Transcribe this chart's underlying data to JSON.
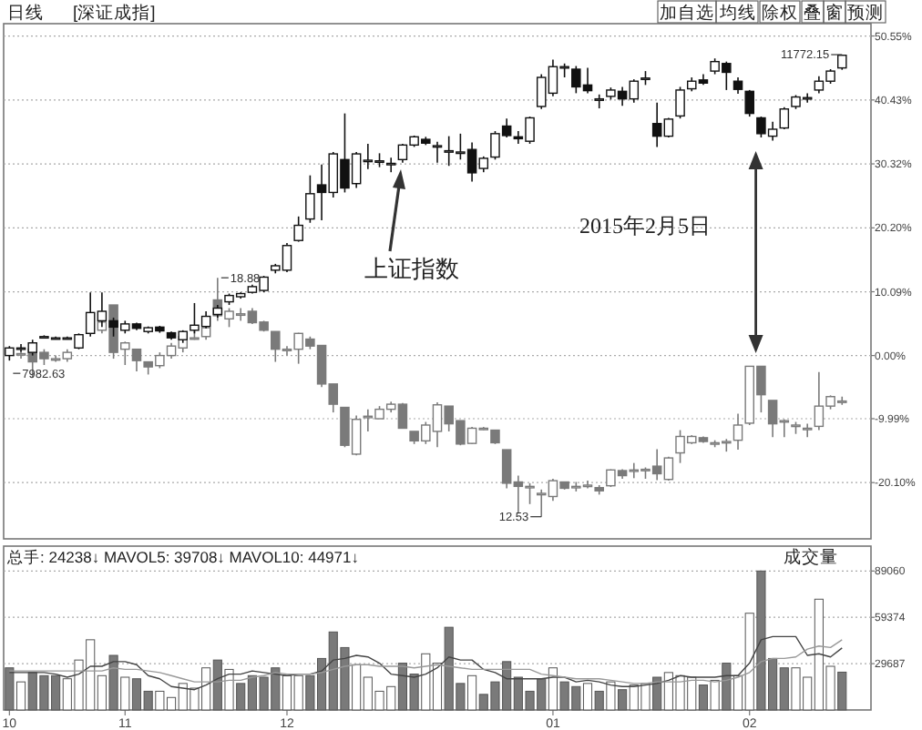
{
  "chart_data": [
    {
      "type": "candlestick",
      "categories": [
        "10",
        null,
        null,
        null,
        null,
        null,
        null,
        null,
        null,
        null,
        "11",
        null,
        null,
        null,
        null,
        null,
        null,
        null,
        null,
        null,
        null,
        null,
        null,
        null,
        "12",
        null,
        null,
        null,
        null,
        null,
        null,
        null,
        null,
        null,
        null,
        null,
        null,
        null,
        null,
        null,
        null,
        null,
        null,
        null,
        null,
        null,
        null,
        "01",
        null,
        null,
        null,
        null,
        null,
        null,
        null,
        null,
        null,
        null,
        null,
        null,
        null,
        null,
        null,
        null,
        "02",
        null,
        null,
        null,
        null,
        null,
        null,
        null,
        null
      ],
      "series": [
        {
          "color": "#7a7a7a",
          "value_labels": [
            null,
            null,
            null,
            null,
            null,
            null,
            null,
            null,
            null,
            null,
            null,
            null,
            null,
            null,
            null,
            null,
            null,
            null,
            "18.88",
            null,
            null,
            null,
            null,
            null,
            null,
            null,
            null,
            null,
            null,
            null,
            null,
            null,
            null,
            null,
            null,
            null,
            null,
            null,
            null,
            null,
            null,
            null,
            null,
            null,
            null,
            null,
            "12.53",
            null,
            null,
            null,
            null,
            null,
            null,
            null,
            null,
            null,
            null,
            null,
            null,
            null,
            null,
            null,
            null,
            null,
            null,
            null,
            null,
            null,
            null,
            null,
            null,
            null,
            null
          ],
          "ohlc": [
            null,
            [
              0.3,
              0.8,
              -0.5,
              0.3
            ],
            [
              1,
              1.5,
              -3.5,
              -1
            ],
            [
              0.5,
              1,
              -1.5,
              -0.5
            ],
            [
              -0.5,
              0,
              -1,
              -0.5
            ],
            [
              -0.5,
              1,
              -1,
              0.5
            ],
            null,
            null,
            [
              4,
              5.5,
              3.5,
              5.3
            ],
            [
              8,
              8,
              -0.5,
              0.5
            ],
            [
              1,
              2.2,
              -1.5,
              2
            ],
            [
              1,
              1,
              -2.5,
              -0.8
            ],
            [
              -1,
              -1,
              -3,
              -1.8
            ],
            [
              -1.6,
              0.5,
              -2,
              0
            ],
            [
              0,
              2,
              -0.5,
              1.5
            ],
            [
              1.2,
              3.5,
              0.5,
              3
            ],
            [
              2.8,
              4,
              2.5,
              2.8
            ],
            [
              3,
              4.8,
              2.5,
              4.4
            ],
            [
              8.8,
              12.3,
              5.5,
              6.3
            ],
            [
              5.8,
              7.5,
              4.5,
              7
            ],
            [
              6.6,
              7.5,
              5.5,
              6.6
            ],
            [
              7,
              7.5,
              5,
              5.2
            ],
            [
              5.3,
              5.5,
              3.8,
              4
            ],
            [
              3.8,
              3.8,
              -1,
              1
            ],
            [
              1,
              1.5,
              0,
              1
            ],
            [
              1,
              3.6,
              -1.3,
              3.5
            ],
            [
              2.6,
              3,
              1,
              1.5
            ],
            [
              1.6,
              1.6,
              -5,
              -4.5
            ],
            [
              -4.5,
              -4.5,
              -9,
              -7.7
            ],
            [
              -8.2,
              -8.2,
              -14.5,
              -14.2
            ],
            [
              -15.6,
              -9.5,
              -15.8,
              -10.1
            ],
            [
              -9.6,
              -8.5,
              -12,
              -9.6
            ],
            [
              -10,
              -8,
              -10,
              -8.5
            ],
            [
              -8.5,
              -7.3,
              -9,
              -7.7
            ],
            [
              -7.7,
              -7.5,
              -11.5,
              -11.5
            ],
            [
              -12,
              -12,
              -14,
              -13.5
            ],
            [
              -13.5,
              -10.5,
              -14,
              -11
            ],
            [
              -12,
              -7.4,
              -14.5,
              -7.8
            ],
            [
              -8,
              -8,
              -12,
              -10.8
            ],
            [
              -10.3,
              -10.3,
              -14.2,
              -14
            ],
            [
              -13.9,
              -11.3,
              -14,
              -11.5
            ],
            [
              -11.5,
              -11.3,
              -11.8,
              -11.5
            ],
            [
              -11.8,
              -11.8,
              -14,
              -13.8
            ],
            [
              -14.9,
              -14.9,
              -21,
              -20.2
            ],
            [
              -20,
              -19,
              -25,
              -20.7
            ],
            [
              -20.7,
              -20.2,
              -23.5,
              -20.7
            ],
            [
              -21.8,
              -21.2,
              -25.5,
              -21.8
            ],
            [
              -22.3,
              -19.5,
              -23,
              -19.8
            ],
            [
              -20,
              -20,
              -21.2,
              -21
            ],
            [
              -20.7,
              -20,
              -21.5,
              -20.7
            ],
            [
              -20.5,
              -19.8,
              -21,
              -20.5
            ],
            [
              -20.9,
              -20.5,
              -22,
              -21.4
            ],
            [
              -20.6,
              -18,
              -20.8,
              -18.1
            ],
            [
              -18.2,
              -18,
              -19.5,
              -19
            ],
            [
              -18.1,
              -17,
              -19.4,
              -18.1
            ],
            [
              -18,
              -17.7,
              -19.5,
              -18
            ],
            [
              -17.5,
              -14.8,
              -19.7,
              -18.7
            ],
            [
              -19.6,
              -16,
              -19.8,
              -16.2
            ],
            [
              -15.4,
              -11.8,
              -17,
              -12.8
            ],
            [
              -13.8,
              -12.6,
              -14,
              -12.8
            ],
            [
              -13,
              -12.8,
              -13.8,
              -13.6
            ],
            [
              -13.8,
              -13.4,
              -14.5,
              -13.8
            ],
            [
              -13.6,
              -13.2,
              -15.2,
              -13.6
            ],
            [
              -13.4,
              -9.2,
              -14.9,
              -11
            ],
            [
              -10.7,
              -1.7,
              -11,
              -1.7
            ],
            [
              -1.7,
              -1.7,
              -9,
              -6.2
            ],
            [
              -7.1,
              -7.1,
              -12.9,
              -10.8
            ],
            [
              -10.3,
              -10.1,
              -12.9,
              -10.3
            ],
            [
              -11,
              -10.5,
              -12.4,
              -11
            ],
            [
              -11.5,
              -10.8,
              -12.9,
              -11.5
            ],
            [
              -11.2,
              -2.6,
              -11.8,
              -8
            ],
            [
              -8,
              -6.3,
              -8.5,
              -6.5
            ],
            [
              -7.2,
              -6.5,
              -7.8,
              -7.2
            ]
          ]
        },
        {
          "color": "#111111",
          "value_labels": [
            "7982.63",
            null,
            null,
            null,
            null,
            null,
            null,
            null,
            null,
            null,
            null,
            null,
            null,
            null,
            null,
            null,
            null,
            null,
            null,
            null,
            null,
            null,
            null,
            null,
            null,
            null,
            null,
            null,
            null,
            null,
            null,
            null,
            null,
            null,
            null,
            null,
            null,
            null,
            null,
            null,
            null,
            null,
            null,
            null,
            null,
            null,
            null,
            null,
            null,
            null,
            null,
            null,
            null,
            null,
            null,
            null,
            null,
            null,
            null,
            null,
            null,
            null,
            null,
            null,
            null,
            null,
            null,
            null,
            null,
            null,
            null,
            null,
            "11772.15"
          ],
          "ohlc": [
            [
              0,
              1.5,
              -0.8,
              1.2
            ],
            [
              1.2,
              1.8,
              0.6,
              1.2
            ],
            [
              0.5,
              2.5,
              0,
              2
            ],
            [
              3,
              3.2,
              2.8,
              3
            ],
            [
              2.8,
              3,
              2.6,
              2.8
            ],
            [
              2.8,
              3,
              2.6,
              2.8
            ],
            [
              1.2,
              3.5,
              1,
              3.3
            ],
            [
              3.5,
              10,
              3,
              6.8
            ],
            [
              5.5,
              10,
              4.5,
              7
            ],
            [
              5.5,
              6,
              3,
              4.5
            ],
            [
              4,
              5.5,
              3.5,
              5
            ],
            [
              5,
              5.2,
              4,
              4.3
            ],
            [
              3.8,
              4.6,
              3.5,
              4.4
            ],
            [
              4.5,
              4.7,
              3.6,
              3.9
            ],
            [
              3.6,
              3.8,
              2.5,
              2.8
            ],
            [
              2.5,
              4,
              2,
              3.8
            ],
            [
              4,
              8.3,
              3.5,
              4.8
            ],
            [
              4.6,
              7,
              4.3,
              6.2
            ],
            [
              6.5,
              8,
              6,
              7.5
            ],
            [
              8.5,
              9.8,
              8,
              9.5
            ],
            [
              9.3,
              10,
              9,
              9.8
            ],
            [
              10,
              11.2,
              9.8,
              10.9
            ],
            [
              10.3,
              12.6,
              10,
              12.4
            ],
            [
              13.5,
              14.5,
              13,
              14.2
            ],
            [
              13.5,
              17.8,
              13.2,
              17.4
            ],
            [
              18.2,
              22,
              18,
              20.6
            ],
            [
              21.6,
              28.5,
              21,
              25.6
            ],
            [
              27,
              30.2,
              21.4,
              25.8
            ],
            [
              25.8,
              32.2,
              25,
              31.9
            ],
            [
              31,
              38.3,
              25.8,
              26.5
            ],
            [
              27.2,
              32.2,
              26.5,
              31.9
            ],
            [
              30.9,
              33.5,
              29.5,
              30.9
            ],
            [
              30.8,
              32,
              29.8,
              30.8
            ],
            [
              30.4,
              31.3,
              29,
              30.4
            ],
            [
              31,
              33.5,
              30.5,
              33.3
            ],
            [
              33.3,
              34.8,
              33,
              34.6
            ],
            [
              34.2,
              34.6,
              33.3,
              33.6
            ],
            [
              33.2,
              33.8,
              30.5,
              33.2
            ],
            [
              32.4,
              34.7,
              30,
              32.4
            ],
            [
              32.2,
              35.1,
              31,
              32.2
            ],
            [
              32.6,
              33.7,
              27.5,
              28.9
            ],
            [
              29.6,
              31.5,
              29,
              31.2
            ],
            [
              31.4,
              35.5,
              31,
              35.1
            ],
            [
              36.3,
              37.5,
              34.5,
              34.8
            ],
            [
              34.6,
              35.5,
              33.5,
              34.3
            ],
            [
              33.9,
              37.8,
              33.5,
              37.6
            ],
            [
              39.4,
              44.5,
              39,
              44
            ],
            [
              41.5,
              46.8,
              41,
              45.7
            ],
            [
              45.7,
              46.2,
              44,
              45.7
            ],
            [
              45.3,
              45.8,
              41.5,
              42.5
            ],
            [
              42.8,
              45.5,
              41.5,
              41.9
            ],
            [
              40.6,
              41.3,
              39.1,
              40.6
            ],
            [
              41,
              42.4,
              40.5,
              42
            ],
            [
              41.8,
              42.5,
              39.5,
              40.6
            ],
            [
              40.6,
              43.7,
              40,
              43.4
            ],
            [
              43.9,
              45,
              42.8,
              43.9
            ],
            [
              36.7,
              40,
              33,
              34.7
            ],
            [
              34.7,
              37.6,
              34.5,
              37.4
            ],
            [
              37.9,
              42.5,
              37.5,
              42
            ],
            [
              42.2,
              44,
              41.8,
              43.4
            ],
            [
              43.6,
              44.5,
              42.8,
              43.1
            ],
            [
              45,
              47,
              44.5,
              46.5
            ],
            [
              46.2,
              46.5,
              42,
              44.8
            ],
            [
              43.4,
              44,
              41.4,
              42.1
            ],
            [
              41.8,
              42,
              37.8,
              38.3
            ],
            [
              37.6,
              37.8,
              34.5,
              35.1
            ],
            [
              34.7,
              37,
              34,
              35.8
            ],
            [
              36,
              39.3,
              35.8,
              39
            ],
            [
              39.4,
              41.2,
              39,
              40.9
            ],
            [
              40.8,
              41.5,
              40,
              40.8
            ],
            [
              42,
              44.2,
              41.5,
              43.4
            ],
            [
              43.4,
              45.3,
              43,
              45
            ],
            [
              45.5,
              47.6,
              45.2,
              47.5
            ]
          ]
        }
      ],
      "ylim": [
        -29,
        52.5
      ],
      "yticks": [
        {
          "value": 50.55,
          "label": "50.55%"
        },
        {
          "value": 40.43,
          "label": "40.43%"
        },
        {
          "value": 30.32,
          "label": "30.32%"
        },
        {
          "value": 20.2,
          "label": "20.20%"
        },
        {
          "value": 10.09,
          "label": "10.09%"
        },
        {
          "value": 0,
          "label": "0.00%"
        },
        {
          "value": -9.99,
          "label": "-9.99%"
        },
        {
          "value": -20.1,
          "label": "-20.10%"
        }
      ],
      "grid": "y",
      "tick_labels": "y",
      "annotations": [
        "日线",
        "[深证成指]",
        "加自选",
        "均线",
        "除权",
        "叠",
        "窗",
        "预测",
        "上证指数",
        "2015年2月5日"
      ]
    },
    {
      "type": "bar",
      "categories": [
        "10",
        null,
        null,
        null,
        null,
        null,
        null,
        null,
        null,
        null,
        "11",
        null,
        null,
        null,
        null,
        null,
        null,
        null,
        null,
        null,
        null,
        null,
        null,
        null,
        "12",
        null,
        null,
        null,
        null,
        null,
        null,
        null,
        null,
        null,
        null,
        null,
        null,
        null,
        null,
        null,
        null,
        null,
        null,
        null,
        null,
        null,
        null,
        "01",
        null,
        null,
        null,
        null,
        null,
        null,
        null,
        null,
        null,
        null,
        null,
        null,
        null,
        null,
        null,
        null,
        "02",
        null,
        null,
        null,
        null,
        null,
        null,
        null,
        null
      ],
      "series": [
        {
          "values": [
            27000,
            18000,
            24000,
            22000,
            22000,
            20000,
            32000,
            45000,
            22000,
            35000,
            21000,
            20000,
            12000,
            12000,
            8000,
            17000,
            14000,
            27000,
            32000,
            26000,
            17000,
            22000,
            21000,
            27000,
            22000,
            22000,
            22000,
            33000,
            50000,
            40000,
            29000,
            21000,
            12000,
            15000,
            30000,
            23000,
            36000,
            30000,
            53000,
            17000,
            22000,
            10000,
            18000,
            31000,
            21000,
            12000,
            20000,
            27000,
            18000,
            15000,
            17000,
            12000,
            18000,
            13000,
            16000,
            17000,
            21000,
            24000,
            22000,
            21000,
            16000,
            19000,
            30000,
            22000,
            62000,
            89060,
            33000,
            27000,
            27000,
            21000,
            71000,
            28000,
            24238
          ],
          "colors": [
            "#7a7a7a",
            "#ffffff",
            "#7a7a7a",
            "#7a7a7a",
            "#7a7a7a",
            "#ffffff",
            "#ffffff",
            "#ffffff",
            "#ffffff",
            "#7a7a7a",
            "#ffffff",
            "#7a7a7a",
            "#7a7a7a",
            "#ffffff",
            "#ffffff",
            "#ffffff",
            "#ffffff",
            "#ffffff",
            "#7a7a7a",
            "#ffffff",
            "#7a7a7a",
            "#7a7a7a",
            "#7a7a7a",
            "#7a7a7a",
            "#ffffff",
            "#ffffff",
            "#7a7a7a",
            "#7a7a7a",
            "#7a7a7a",
            "#7a7a7a",
            "#ffffff",
            "#ffffff",
            "#ffffff",
            "#ffffff",
            "#7a7a7a",
            "#7a7a7a",
            "#ffffff",
            "#ffffff",
            "#7a7a7a",
            "#7a7a7a",
            "#ffffff",
            "#7a7a7a",
            "#7a7a7a",
            "#7a7a7a",
            "#7a7a7a",
            "#7a7a7a",
            "#7a7a7a",
            "#ffffff",
            "#7a7a7a",
            "#7a7a7a",
            "#ffffff",
            "#7a7a7a",
            "#ffffff",
            "#7a7a7a",
            "#ffffff",
            "#ffffff",
            "#7a7a7a",
            "#ffffff",
            "#ffffff",
            "#ffffff",
            "#7a7a7a",
            "#ffffff",
            "#7a7a7a",
            "#ffffff",
            "#ffffff",
            "#7a7a7a",
            "#7a7a7a",
            "#7a7a7a",
            "#ffffff",
            "#ffffff",
            "#ffffff",
            "#ffffff",
            "#7a7a7a"
          ]
        },
        {
          "type": "line",
          "color": "#444444",
          "values": [
            24000,
            24000,
            24000,
            24000,
            23000,
            21000,
            23000,
            28000,
            28000,
            31000,
            31000,
            29000,
            22000,
            20000,
            15000,
            14000,
            13000,
            16000,
            20000,
            23000,
            23000,
            25000,
            24000,
            23000,
            22000,
            23000,
            23000,
            25000,
            32000,
            33000,
            35000,
            34000,
            30000,
            23000,
            22000,
            21000,
            23000,
            27000,
            34000,
            32000,
            32000,
            26000,
            24000,
            20000,
            20000,
            20000,
            20000,
            21000,
            21000,
            18000,
            19000,
            18000,
            16000,
            15000,
            15000,
            16000,
            17000,
            19000,
            22000,
            21000,
            21000,
            21000,
            22000,
            22000,
            30000,
            45000,
            47000,
            47000,
            47000,
            35000,
            36000,
            34000,
            39708
          ]
        },
        {
          "type": "line",
          "color": "#999999",
          "values": [
            25000,
            25000,
            25000,
            25000,
            25000,
            25000,
            25000,
            25000,
            25000,
            27000,
            26000,
            26000,
            25000,
            24000,
            22000,
            20000,
            18000,
            18000,
            18000,
            19000,
            19000,
            21000,
            22000,
            24000,
            23000,
            23000,
            23000,
            24000,
            26000,
            28000,
            29000,
            29000,
            28000,
            28000,
            28000,
            27000,
            28000,
            29000,
            28000,
            27000,
            26000,
            26000,
            26000,
            26000,
            26000,
            26000,
            23000,
            22000,
            21000,
            20000,
            20000,
            20000,
            19000,
            18000,
            17000,
            17000,
            18000,
            18000,
            18000,
            19000,
            19000,
            18000,
            19000,
            21000,
            24000,
            31000,
            33000,
            33000,
            34000,
            39000,
            41000,
            40000,
            44971
          ]
        }
      ],
      "ylim": [
        0,
        105000
      ],
      "yticks": [
        29687,
        59374,
        89060
      ],
      "grid": "y",
      "annotations": [
        "总手: 24238↓  MAVOL5: 39708↓  MAVOL10: 44971↓",
        "成交量"
      ]
    }
  ]
}
